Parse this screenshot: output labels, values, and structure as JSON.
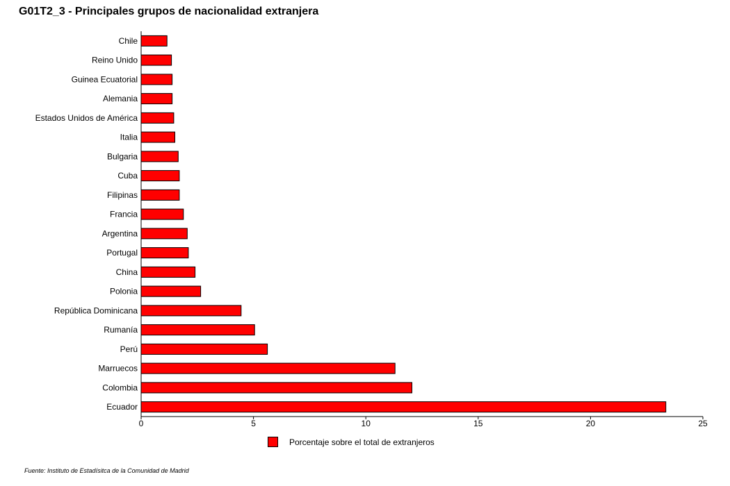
{
  "chart_data": {
    "type": "bar",
    "orientation": "horizontal",
    "title": "G01T2_3 - Principales grupos de nacionalidad extranjera",
    "categories": [
      "Chile",
      "Reino Unido",
      "Guinea Ecuatorial",
      "Alemania",
      "Estados Unidos de América",
      "Italia",
      "Bulgaria",
      "Cuba",
      "Filipinas",
      "Francia",
      "Argentina",
      "Portugal",
      "China",
      "Polonia",
      "República Dominicana",
      "Rumanía",
      "Perú",
      "Marruecos",
      "Colombia",
      "Ecuador"
    ],
    "series": [
      {
        "name": "Porcentaje sobre el total de extranjeros",
        "color": "#ff0000",
        "values": [
          1.15,
          1.35,
          1.38,
          1.38,
          1.45,
          1.5,
          1.65,
          1.7,
          1.7,
          1.88,
          2.05,
          2.1,
          2.4,
          2.65,
          4.45,
          5.05,
          5.62,
          11.3,
          12.05,
          23.35
        ]
      }
    ],
    "xlim": [
      0,
      25
    ],
    "xticks": [
      0,
      5,
      10,
      15,
      20,
      25
    ],
    "xlabel": "",
    "ylabel": "",
    "grid": false,
    "legend": "bottom-center",
    "source": "Fuente: Instituto de Estadísitca de la Comunidad de Madrid"
  }
}
